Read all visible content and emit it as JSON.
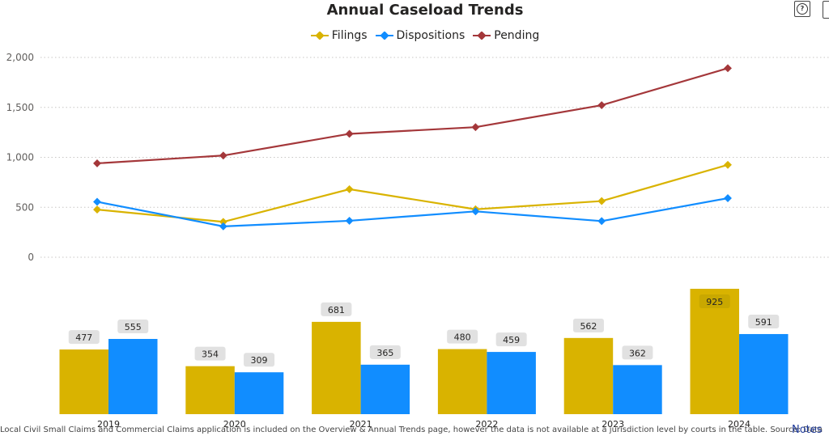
{
  "chart_data": {
    "type": "line+bar",
    "title": "Annual Caseload Trends",
    "legend_placement": "top-center",
    "categories": [
      "2019",
      "2020",
      "2021",
      "2022",
      "2023",
      "2024"
    ],
    "series": [
      {
        "name": "Filings",
        "color": "#d9b300",
        "values": [
          477,
          354,
          681,
          480,
          562,
          925
        ]
      },
      {
        "name": "Dispositions",
        "color": "#118dff",
        "values": [
          555,
          309,
          365,
          459,
          362,
          591
        ]
      },
      {
        "name": "Pending",
        "color": "#a4373a",
        "values": [
          940,
          1018,
          1235,
          1302,
          1522,
          1892
        ]
      }
    ],
    "line_axis": {
      "ylim": [
        0,
        2000
      ],
      "ticks": [
        "0",
        "500",
        "1,000",
        "1,500",
        "2,000"
      ],
      "grid": true
    },
    "bar_chart": {
      "series": [
        "Filings",
        "Dispositions"
      ],
      "data_labels": true
    }
  },
  "controls": {
    "help_label": "?"
  },
  "footnote": "Local Civil Small Claims and Commercial Claims application is included on the Overview & Annual Trends page, however the data is not available at a jurisdiction level by courts in the table. Source: Data",
  "notes_link": "Notes"
}
